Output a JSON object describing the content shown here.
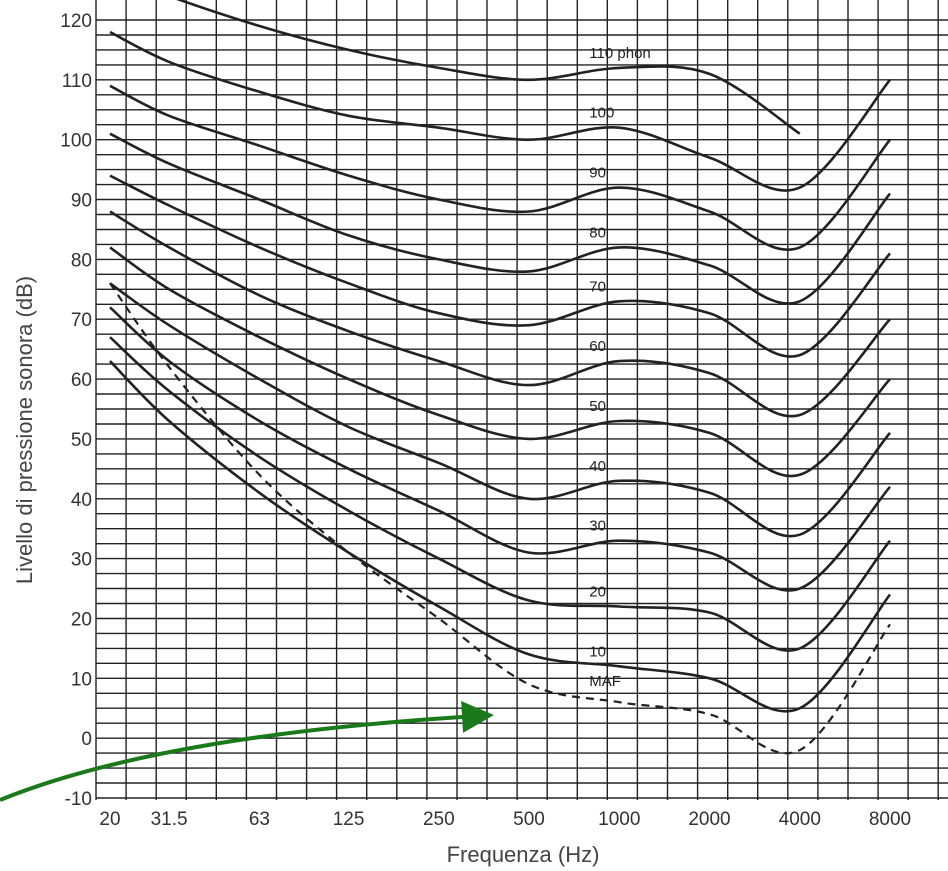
{
  "chart_data": {
    "type": "line",
    "title": "",
    "xlabel": "Frequenza (Hz)",
    "ylabel": "Livello di pressione sonora (dB)",
    "x_scale": "log",
    "x_ticks": [
      "20",
      "31.5",
      "63",
      "125",
      "250",
      "500",
      "1000",
      "2000",
      "4000",
      "8000"
    ],
    "y_ticks": [
      "120",
      "110",
      "100",
      "90",
      "80",
      "70",
      "60",
      "50",
      "40",
      "30",
      "20",
      "10",
      "0",
      "-10"
    ],
    "ylim": [
      -10,
      120
    ],
    "grid": true,
    "legend": "none",
    "accent_color": "#1a7a1a",
    "x": [
      20,
      31.5,
      63,
      125,
      250,
      500,
      1000,
      2000,
      4000,
      8000
    ],
    "series": [
      {
        "name": "110 phon",
        "values": [
          128,
          124,
          119,
          115,
          112,
          110,
          112,
          111,
          101,
          null
        ]
      },
      {
        "name": "100",
        "values": [
          118,
          113,
          108,
          104,
          102,
          100,
          102,
          97,
          92,
          110
        ]
      },
      {
        "name": "90",
        "values": [
          109,
          104,
          99,
          94,
          90,
          88,
          92,
          88,
          82,
          100
        ]
      },
      {
        "name": "80",
        "values": [
          101,
          96,
          90,
          84,
          80,
          78,
          82,
          79,
          73,
          91
        ]
      },
      {
        "name": "70",
        "values": [
          94,
          89,
          82,
          76,
          71,
          69,
          73,
          71,
          64,
          81
        ]
      },
      {
        "name": "60",
        "values": [
          88,
          82,
          74,
          68,
          63,
          59,
          63,
          61,
          54,
          70
        ]
      },
      {
        "name": "50",
        "values": [
          82,
          75,
          67,
          60,
          54,
          50,
          53,
          51,
          44,
          60
        ]
      },
      {
        "name": "40",
        "values": [
          76,
          69,
          60,
          52,
          46,
          40,
          43,
          41,
          34,
          51
        ]
      },
      {
        "name": "30",
        "values": [
          72,
          63,
          53,
          45,
          38,
          31,
          33,
          31,
          25,
          42
        ]
      },
      {
        "name": "20",
        "values": [
          67,
          58,
          47,
          38,
          30,
          23,
          22,
          21,
          15,
          33
        ]
      },
      {
        "name": "10",
        "values": [
          63,
          53,
          41,
          31,
          22,
          14,
          12,
          10,
          5,
          24
        ]
      },
      {
        "name": "MAF",
        "values": [
          76,
          62,
          44,
          31,
          20,
          9,
          6,
          4,
          -2,
          19
        ]
      }
    ]
  }
}
